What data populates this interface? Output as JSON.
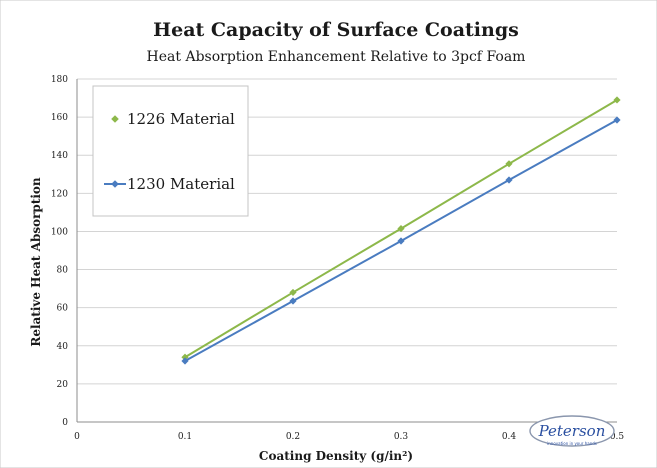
{
  "chart_data": {
    "type": "line",
    "title": "Heat Capacity of Surface Coatings",
    "subtitle": "Heat Absorption Enhancement Relative to 3pcf Foam",
    "xlabel": "Coating Density (g/in²)",
    "ylabel": "Relative Heat Absorption",
    "xlim": [
      0,
      0.5
    ],
    "ylim": [
      0,
      180
    ],
    "xticks": [
      "0",
      "0.1",
      "0.2",
      "0.3",
      "0.4",
      "0.5"
    ],
    "yticks": [
      "0",
      "20",
      "40",
      "60",
      "80",
      "100",
      "120",
      "140",
      "160",
      "180"
    ],
    "grid": "horizontal",
    "legend_position": "top-left",
    "series": [
      {
        "name": "1226 Material",
        "color": "#8db84a",
        "marker": "diamond",
        "x": [
          0.1,
          0.2,
          0.3,
          0.4,
          0.5
        ],
        "values": [
          34,
          68,
          101.5,
          135.5,
          169
        ]
      },
      {
        "name": "1230 Material",
        "color": "#4a7cc0",
        "marker": "diamond",
        "x": [
          0.1,
          0.2,
          0.3,
          0.4,
          0.5
        ],
        "values": [
          32,
          63.5,
          95,
          127,
          158.5
        ]
      }
    ]
  },
  "logo": {
    "name": "Peterson",
    "tagline": "innovation in your hands"
  }
}
